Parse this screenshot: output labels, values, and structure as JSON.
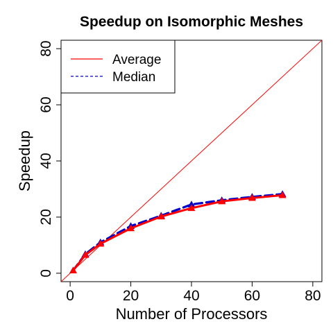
{
  "chart_data": {
    "type": "line",
    "title": "Speedup on Isomorphic Meshes",
    "xlabel": "Number of Processors",
    "ylabel": "Speedup",
    "xlim": [
      -3,
      83
    ],
    "ylim": [
      -3,
      83
    ],
    "xticks": [
      0,
      20,
      40,
      60,
      80
    ],
    "yticks": [
      0,
      20,
      40,
      60,
      80
    ],
    "grid": false,
    "legend_position": "top-left",
    "reference_line": {
      "kind": "identity",
      "color": "#ff0000"
    },
    "series": [
      {
        "name": "Average",
        "color": "#ff0000",
        "style": "solid",
        "marker": "triangle",
        "x": [
          1,
          5,
          10,
          20,
          30,
          40,
          50,
          60,
          70
        ],
        "y": [
          1,
          6.5,
          10.5,
          16,
          20.2,
          23.2,
          25.6,
          26.8,
          27.8
        ]
      },
      {
        "name": "Median",
        "color": "#0000cc",
        "style": "dashed",
        "marker": "triangle",
        "x": [
          1,
          5,
          10,
          20,
          30,
          40,
          50,
          60,
          70
        ],
        "y": [
          1,
          6.8,
          11,
          16.8,
          20.5,
          24.5,
          26,
          27.2,
          28.2
        ]
      }
    ]
  }
}
